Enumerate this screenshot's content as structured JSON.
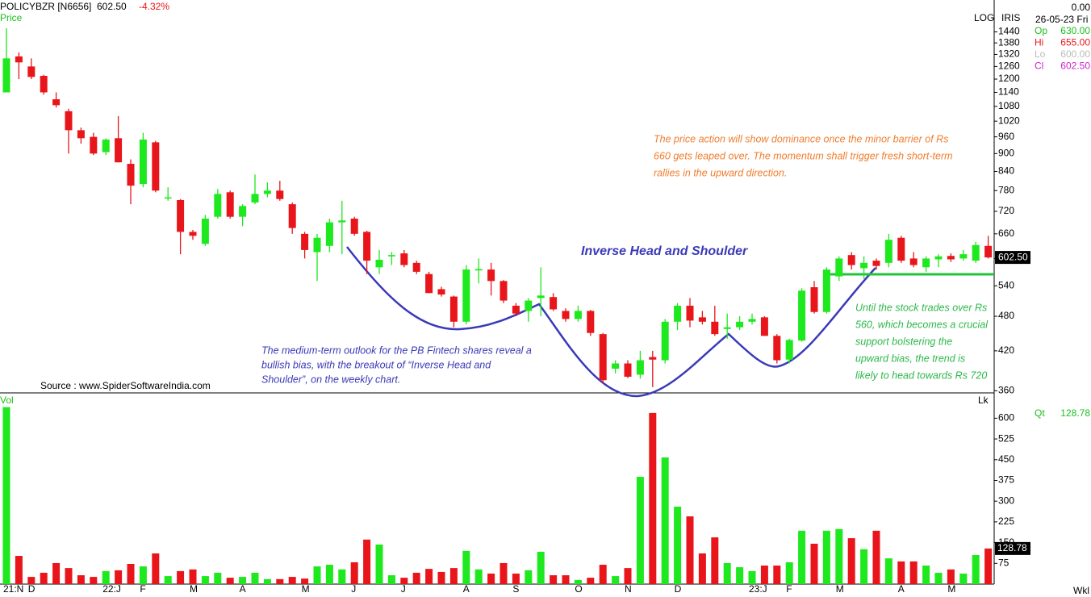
{
  "chart_data": [
    {
      "type": "candlestick",
      "title": "POLICYBZR [N6656]",
      "last": "602.50",
      "change": "-4.32%",
      "panel_label": "Price",
      "scale_label": "LOG",
      "study_label": "IRIS",
      "price_tag": "602.50",
      "source": "Source : www.SpiderSoftwareIndia.com",
      "log": true,
      "ylim": [
        357,
        1540
      ],
      "yticks": [
        360,
        420,
        480,
        540,
        600,
        660,
        720,
        780,
        840,
        900,
        960,
        1020,
        1080,
        1140,
        1200,
        1260,
        1320,
        1380,
        1440
      ],
      "up_color": "#1ee81e",
      "down_color": "#e8161b",
      "categories": [
        "21:N",
        null,
        "D",
        null,
        null,
        null,
        null,
        null,
        "22:J",
        null,
        null,
        "F",
        null,
        null,
        null,
        "M",
        null,
        null,
        null,
        "A",
        null,
        null,
        null,
        null,
        "M",
        null,
        null,
        null,
        "J",
        null,
        null,
        null,
        "J",
        null,
        null,
        null,
        null,
        "A",
        null,
        null,
        null,
        "S",
        null,
        null,
        null,
        null,
        "O",
        null,
        null,
        null,
        "N",
        null,
        null,
        null,
        "D",
        null,
        null,
        null,
        null,
        null,
        "23:J",
        null,
        null,
        "F",
        null,
        null,
        null,
        "M",
        null,
        null,
        null,
        null,
        "A",
        null,
        null,
        null,
        "M",
        null,
        null,
        null
      ],
      "open": [
        1140,
        1310,
        1260,
        1215,
        1110,
        1060,
        985,
        960,
        905,
        955,
        865,
        800,
        940,
        757,
        752,
        665,
        635,
        705,
        775,
        705,
        745,
        770,
        780,
        740,
        660,
        615,
        630,
        690,
        700,
        665,
        580,
        605,
        612,
        590,
        565,
        533,
        518,
        470,
        573,
        575,
        550,
        500,
        490,
        515,
        517,
        490,
        475,
        490,
        448,
        392,
        400,
        383,
        410,
        405,
        470,
        500,
        478,
        470,
        457,
        460,
        470,
        478,
        445,
        406,
        437,
        537,
        488,
        560,
        608,
        578,
        595,
        590,
        650,
        600,
        580,
        598,
        606,
        600,
        595,
        630
      ],
      "high": [
        1460,
        1330,
        1300,
        1220,
        1140,
        1070,
        995,
        975,
        955,
        1040,
        880,
        975,
        945,
        790,
        755,
        670,
        710,
        785,
        780,
        740,
        830,
        805,
        810,
        745,
        665,
        660,
        700,
        750,
        705,
        668,
        620,
        615,
        620,
        595,
        570,
        538,
        520,
        585,
        600,
        590,
        552,
        505,
        515,
        580,
        525,
        495,
        500,
        492,
        450,
        405,
        405,
        420,
        420,
        475,
        505,
        515,
        490,
        500,
        485,
        480,
        485,
        480,
        448,
        440,
        535,
        550,
        580,
        605,
        615,
        605,
        600,
        660,
        655,
        615,
        605,
        610,
        612,
        620,
        640,
        655
      ],
      "low": [
        1140,
        1200,
        1200,
        1130,
        1075,
        900,
        935,
        895,
        895,
        870,
        740,
        790,
        775,
        750,
        610,
        645,
        630,
        700,
        700,
        680,
        740,
        760,
        750,
        660,
        600,
        550,
        615,
        610,
        655,
        565,
        565,
        585,
        580,
        565,
        525,
        518,
        460,
        465,
        545,
        520,
        505,
        480,
        470,
        480,
        490,
        470,
        470,
        445,
        370,
        385,
        378,
        377,
        365,
        400,
        455,
        460,
        465,
        445,
        440,
        455,
        465,
        445,
        400,
        400,
        435,
        485,
        485,
        550,
        575,
        555,
        575,
        580,
        590,
        580,
        570,
        580,
        592,
        595,
        590,
        600
      ],
      "close": [
        1300,
        1280,
        1210,
        1140,
        1085,
        985,
        955,
        900,
        950,
        870,
        795,
        950,
        780,
        760,
        665,
        655,
        700,
        770,
        705,
        735,
        770,
        780,
        755,
        675,
        620,
        650,
        690,
        695,
        660,
        595,
        597,
        608,
        585,
        570,
        525,
        522,
        470,
        575,
        576,
        550,
        510,
        485,
        510,
        520,
        493,
        475,
        490,
        450,
        375,
        400,
        380,
        405,
        406,
        470,
        500,
        472,
        470,
        448,
        460,
        470,
        475,
        445,
        405,
        438,
        530,
        488,
        575,
        600,
        585,
        590,
        583,
        645,
        595,
        585,
        600,
        605,
        598,
        610,
        632,
        602.5
      ],
      "pattern_label": "Inverse Head and Shoulder",
      "annotation_top": [
        "The price action will show dominance once the minor barrier of Rs",
        "660 gets leaped over. The momentum shall trigger fresh short-term",
        "rallies in the upward direction."
      ],
      "annotation_left": [
        "The medium-term outlook for the PB Fintech shares reveal a",
        "bullish bias, with the breakout of “Inverse Head and",
        "Shoulder”, on the weekly chart."
      ],
      "annotation_right": [
        "Until the stock trades over Rs",
        "560, which becomes a crucial",
        "support bolstering the",
        "upward bias, the trend is",
        "likely to head towards Rs 720"
      ]
    },
    {
      "type": "bar",
      "panel_label": "Vol",
      "corner_label": "Lk",
      "volume_tag": "128.78",
      "period": "Wkl",
      "ylim": [
        0,
        677
      ],
      "yticks": [
        75,
        150,
        225,
        300,
        375,
        450,
        525,
        600
      ],
      "values": [
        640,
        102,
        26,
        41,
        76,
        58,
        32,
        26,
        47,
        50,
        73,
        64,
        111,
        29,
        47,
        53,
        29,
        41,
        23,
        26,
        41,
        18,
        18,
        26,
        20,
        64,
        70,
        53,
        79,
        161,
        143,
        32,
        23,
        41,
        55,
        44,
        58,
        120,
        53,
        38,
        76,
        38,
        50,
        117,
        32,
        32,
        15,
        23,
        70,
        29,
        58,
        388,
        619,
        458,
        280,
        245,
        111,
        169,
        76,
        61,
        47,
        67,
        67,
        79,
        193,
        146,
        193,
        199,
        166,
        126,
        193,
        93,
        82,
        82,
        67,
        41,
        53,
        38,
        105,
        128.78
      ]
    }
  ],
  "info_panel": {
    "top": "0.00",
    "date": "26-05-23 Fri",
    "rows": [
      {
        "label": "Op",
        "value": "630.00"
      },
      {
        "label": "Hi",
        "value": "655.00"
      },
      {
        "label": "Lo",
        "value": "600.00"
      },
      {
        "label": "Cl",
        "value": "602.50"
      }
    ],
    "qty_label": "Qt",
    "qty_value": "128.78"
  }
}
